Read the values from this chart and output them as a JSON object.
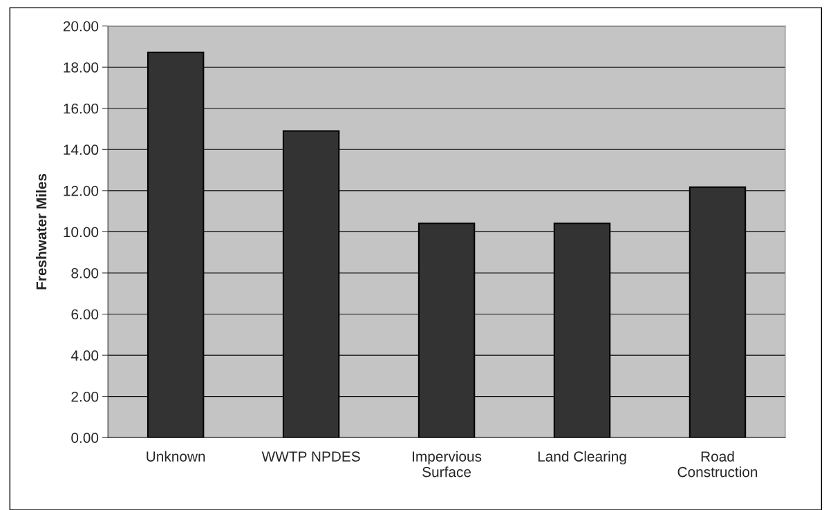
{
  "chart_data": {
    "type": "bar",
    "ylabel": "Freshwater Miles",
    "categories": [
      "Unknown",
      "WWTP NPDES",
      "Impervious Surface",
      "Land Clearing",
      "Road Construction"
    ],
    "values": [
      18.72,
      14.9,
      10.41,
      10.41,
      12.17
    ],
    "color": "#333333",
    "ylim": [
      0,
      20
    ],
    "yticks": [
      {
        "value": 0,
        "label": "0.00"
      },
      {
        "value": 2,
        "label": "2.00"
      },
      {
        "value": 4,
        "label": "4.00"
      },
      {
        "value": 6,
        "label": "6.00"
      },
      {
        "value": 8,
        "label": "8.00"
      },
      {
        "value": 10,
        "label": "10.00"
      },
      {
        "value": 12,
        "label": "12.00"
      },
      {
        "value": 14,
        "label": "14.00"
      },
      {
        "value": 16,
        "label": "16.00"
      },
      {
        "value": 18,
        "label": "18.00"
      },
      {
        "value": 20,
        "label": "20.00"
      }
    ],
    "grid": "y"
  }
}
